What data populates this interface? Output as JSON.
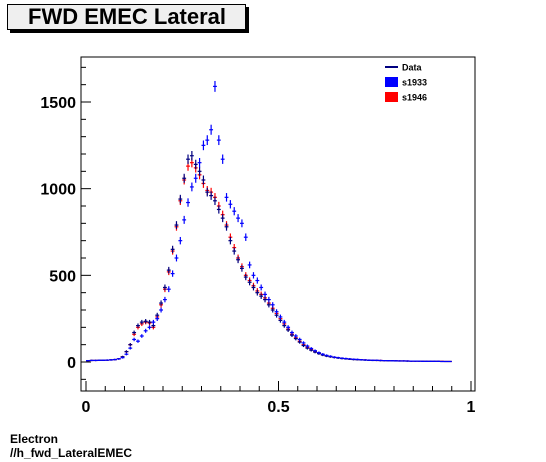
{
  "chart_data": {
    "type": "scatter",
    "title": "FWD EMEC Lateral",
    "xlim": [
      0,
      1
    ],
    "ylim": [
      -150,
      1750
    ],
    "x_ticks": [
      {
        "v": 0,
        "label": "0"
      },
      {
        "v": 0.5,
        "label": "0.5"
      },
      {
        "v": 1,
        "label": "1"
      }
    ],
    "y_ticks": [
      {
        "v": 0,
        "label": "0"
      },
      {
        "v": 500,
        "label": "500"
      },
      {
        "v": 1000,
        "label": "1000"
      },
      {
        "v": 1500,
        "label": "1500"
      }
    ],
    "legend": {
      "placement": "top-right",
      "entries": [
        {
          "label": "Data",
          "style": "line",
          "color": "#000080"
        },
        {
          "label": "s1933",
          "style": "box",
          "color": "#0000ff"
        },
        {
          "label": "s1946",
          "style": "box",
          "color": "#ff0000"
        }
      ]
    },
    "colors": {
      "Data": "#000080",
      "s1933": "#0000ff",
      "s1946": "#ff0000"
    },
    "series": [
      {
        "key": "s1946",
        "x": [
          0.005,
          0.015,
          0.025,
          0.035,
          0.045,
          0.055,
          0.065,
          0.075,
          0.085,
          0.095,
          0.105,
          0.115,
          0.125,
          0.135,
          0.145,
          0.155,
          0.165,
          0.175,
          0.185,
          0.195,
          0.205,
          0.215,
          0.225,
          0.235,
          0.245,
          0.255,
          0.265,
          0.275,
          0.285,
          0.295,
          0.305,
          0.315,
          0.325,
          0.335,
          0.345,
          0.355,
          0.365,
          0.375,
          0.385,
          0.395,
          0.405,
          0.415,
          0.425,
          0.435,
          0.445,
          0.455,
          0.465,
          0.475,
          0.485,
          0.495,
          0.505,
          0.515,
          0.525,
          0.535,
          0.545,
          0.555,
          0.565,
          0.575,
          0.585,
          0.595,
          0.605,
          0.615,
          0.625,
          0.635,
          0.645,
          0.655,
          0.665,
          0.675,
          0.685,
          0.695,
          0.705,
          0.715,
          0.725,
          0.735,
          0.745,
          0.755,
          0.765,
          0.775,
          0.785,
          0.795,
          0.805,
          0.815,
          0.825,
          0.835,
          0.845,
          0.855,
          0.865,
          0.875,
          0.885,
          0.895,
          0.905,
          0.915,
          0.925,
          0.935,
          0.945
        ],
        "y": [
          8,
          9,
          9,
          10,
          10,
          11,
          12,
          14,
          18,
          30,
          60,
          100,
          160,
          200,
          220,
          230,
          225,
          200,
          260,
          330,
          420,
          520,
          640,
          780,
          930,
          1050,
          1130,
          1150,
          1120,
          1080,
          1030,
          990,
          980,
          950,
          900,
          850,
          790,
          720,
          660,
          600,
          550,
          500,
          470,
          440,
          410,
          390,
          370,
          340,
          310,
          280,
          250,
          220,
          190,
          160,
          140,
          120,
          100,
          85,
          72,
          60,
          50,
          42,
          36,
          31,
          27,
          24,
          21,
          19,
          17,
          15,
          14,
          13,
          12,
          11,
          10,
          9,
          9,
          8,
          8,
          7,
          7,
          6,
          6,
          6,
          5,
          5,
          5,
          5,
          4,
          4,
          4,
          4,
          4,
          3,
          3
        ]
      },
      {
        "key": "Data",
        "x": [
          0.005,
          0.015,
          0.025,
          0.035,
          0.045,
          0.055,
          0.065,
          0.075,
          0.085,
          0.095,
          0.105,
          0.115,
          0.125,
          0.135,
          0.145,
          0.155,
          0.165,
          0.175,
          0.185,
          0.195,
          0.205,
          0.215,
          0.225,
          0.235,
          0.245,
          0.255,
          0.265,
          0.275,
          0.285,
          0.295,
          0.305,
          0.315,
          0.325,
          0.335,
          0.345,
          0.355,
          0.365,
          0.375,
          0.385,
          0.395,
          0.405,
          0.415,
          0.425,
          0.435,
          0.445,
          0.455,
          0.465,
          0.475,
          0.485,
          0.495,
          0.505,
          0.515,
          0.525,
          0.535,
          0.545,
          0.555,
          0.565,
          0.575,
          0.585,
          0.595,
          0.605,
          0.615,
          0.625,
          0.635,
          0.645,
          0.655,
          0.665,
          0.675,
          0.685,
          0.695,
          0.705,
          0.715,
          0.725,
          0.735,
          0.745,
          0.755,
          0.765,
          0.775,
          0.785,
          0.795,
          0.805,
          0.815,
          0.825,
          0.835,
          0.845,
          0.855,
          0.865,
          0.875,
          0.885,
          0.895,
          0.905,
          0.915,
          0.925,
          0.935,
          0.945
        ],
        "y": [
          8,
          9,
          9,
          10,
          10,
          11,
          12,
          14,
          18,
          30,
          60,
          100,
          170,
          210,
          230,
          235,
          230,
          210,
          270,
          340,
          430,
          530,
          650,
          790,
          940,
          1060,
          1170,
          1190,
          1140,
          1100,
          1050,
          980,
          960,
          930,
          880,
          830,
          780,
          700,
          640,
          590,
          540,
          490,
          460,
          430,
          400,
          380,
          360,
          330,
          300,
          270,
          240,
          210,
          185,
          155,
          135,
          115,
          95,
          80,
          68,
          57,
          48,
          40,
          34,
          30,
          26,
          23,
          20,
          18,
          16,
          14,
          13,
          12,
          11,
          10,
          9,
          9,
          8,
          8,
          7,
          7,
          6,
          6,
          6,
          5,
          5,
          5,
          5,
          4,
          4,
          4,
          4,
          4,
          3,
          3,
          3
        ]
      },
      {
        "key": "s1933",
        "x": [
          0.005,
          0.015,
          0.025,
          0.035,
          0.045,
          0.055,
          0.065,
          0.075,
          0.085,
          0.095,
          0.105,
          0.115,
          0.125,
          0.135,
          0.145,
          0.155,
          0.165,
          0.175,
          0.185,
          0.195,
          0.205,
          0.215,
          0.225,
          0.235,
          0.245,
          0.255,
          0.265,
          0.275,
          0.285,
          0.295,
          0.305,
          0.315,
          0.325,
          0.335,
          0.345,
          0.355,
          0.365,
          0.375,
          0.385,
          0.395,
          0.405,
          0.415,
          0.425,
          0.435,
          0.445,
          0.455,
          0.465,
          0.475,
          0.485,
          0.495,
          0.505,
          0.515,
          0.525,
          0.535,
          0.545,
          0.555,
          0.565,
          0.575,
          0.585,
          0.595,
          0.605,
          0.615,
          0.625,
          0.635,
          0.645,
          0.655,
          0.665,
          0.675,
          0.685,
          0.695,
          0.705,
          0.715,
          0.725,
          0.735,
          0.745,
          0.755,
          0.765,
          0.775,
          0.785,
          0.795,
          0.805,
          0.815,
          0.825,
          0.835,
          0.845,
          0.855,
          0.865,
          0.875,
          0.885,
          0.895,
          0.905,
          0.915,
          0.925,
          0.935,
          0.945
        ],
        "y": [
          8,
          9,
          9,
          10,
          10,
          11,
          12,
          14,
          18,
          25,
          45,
          80,
          130,
          120,
          150,
          180,
          200,
          230,
          250,
          300,
          360,
          420,
          510,
          600,
          700,
          820,
          920,
          1010,
          1060,
          1150,
          1250,
          1280,
          1340,
          1590,
          1280,
          1170,
          950,
          910,
          870,
          830,
          800,
          720,
          560,
          500,
          470,
          430,
          390,
          360,
          330,
          290,
          260,
          230,
          200,
          170,
          150,
          130,
          110,
          92,
          78,
          65,
          54,
          45,
          38,
          33,
          28,
          25,
          22,
          20,
          18,
          16,
          15,
          13,
          12,
          11,
          10,
          10,
          9,
          8,
          8,
          7,
          7,
          6,
          6,
          6,
          5,
          5,
          5,
          4,
          4,
          4,
          4,
          4,
          3,
          3,
          3
        ]
      }
    ]
  },
  "footer": {
    "line1": "Electron",
    "line2": "//h_fwd_LateralEMEC"
  }
}
